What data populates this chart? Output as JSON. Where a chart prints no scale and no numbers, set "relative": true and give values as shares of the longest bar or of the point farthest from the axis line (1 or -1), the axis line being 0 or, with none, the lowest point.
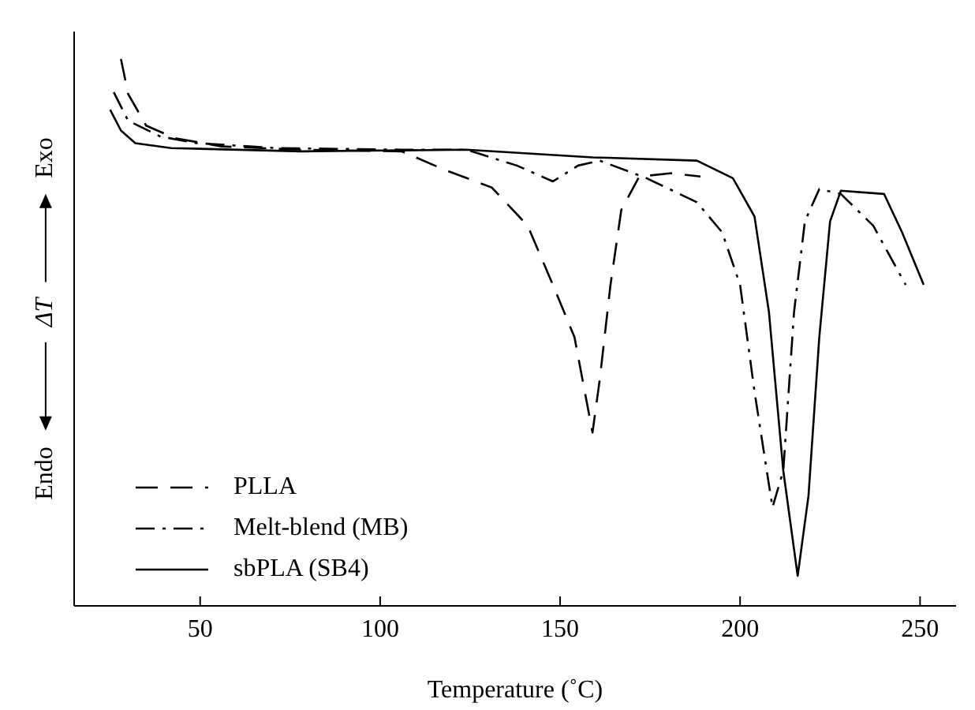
{
  "chart_data": {
    "type": "line",
    "relative": true,
    "xlabel": "Temperature (˚C)",
    "ylabel": "ΔT",
    "annotations": [
      "Exo",
      "Endo"
    ],
    "xlim": [
      15,
      260
    ],
    "xticks": [
      50,
      100,
      150,
      200,
      250
    ],
    "legend": "bottom left",
    "grid": false,
    "marker": "none",
    "series": [
      {
        "name": "PLLA",
        "color": "#000000",
        "line_style": "dashed",
        "x": [
          28,
          30,
          35,
          43,
          56,
          78,
          106,
          118,
          131,
          141,
          148,
          154,
          159,
          161,
          164,
          167,
          172,
          181,
          189
        ],
        "values": [
          1.0,
          0.936,
          0.878,
          0.855,
          0.84,
          0.834,
          0.831,
          0.797,
          0.765,
          0.695,
          0.587,
          0.491,
          0.317,
          0.413,
          0.587,
          0.724,
          0.785,
          0.791,
          0.785
        ]
      },
      {
        "name": "Melt-blend (MB)",
        "color": "#000000",
        "line_style": "dashdot",
        "x": [
          26,
          30,
          39,
          49,
          71,
          106,
          124,
          138,
          148,
          155,
          161,
          174,
          188,
          195,
          200,
          204,
          209,
          212,
          215,
          218,
          222,
          228,
          237,
          246
        ],
        "values": [
          0.939,
          0.887,
          0.858,
          0.846,
          0.837,
          0.834,
          0.834,
          0.805,
          0.776,
          0.805,
          0.814,
          0.782,
          0.738,
          0.683,
          0.587,
          0.392,
          0.18,
          0.247,
          0.538,
          0.703,
          0.762,
          0.753,
          0.695,
          0.587
        ]
      },
      {
        "name": "sbPLA (SB4)",
        "color": "#000000",
        "line_style": "solid",
        "x": [
          25,
          28,
          32,
          42,
          78,
          124,
          159,
          188,
          198,
          204,
          208,
          212,
          216,
          219,
          222,
          225,
          228,
          240,
          245,
          251
        ],
        "values": [
          0.907,
          0.869,
          0.846,
          0.837,
          0.831,
          0.834,
          0.82,
          0.814,
          0.782,
          0.712,
          0.538,
          0.247,
          0.055,
          0.201,
          0.491,
          0.703,
          0.759,
          0.753,
          0.683,
          0.587
        ]
      }
    ]
  }
}
